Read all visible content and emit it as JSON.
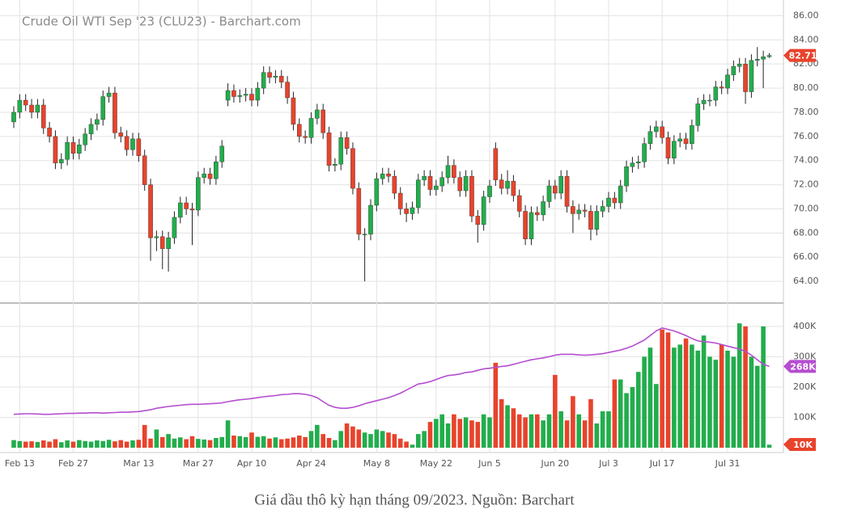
{
  "chart_data": {
    "type": "candlestick",
    "title": "Crude Oil WTI Sep '23 (CLU23) - Barchart.com",
    "caption": "Giá dầu thô kỳ hạn tháng 09/2023. Nguồn: Barchart",
    "up_color": "#22ad4c",
    "down_color": "#e8432c",
    "ma_color": "#b54ed0",
    "grid": true,
    "categories": [
      null,
      "Feb 13",
      null,
      null,
      null,
      null,
      null,
      null,
      null,
      null,
      "Feb 27",
      null,
      null,
      null,
      null,
      null,
      null,
      null,
      null,
      null,
      null,
      "Mar 13",
      null,
      null,
      null,
      null,
      null,
      null,
      null,
      null,
      null,
      "Mar 27",
      null,
      null,
      null,
      null,
      null,
      null,
      null,
      null,
      "Apr 10",
      null,
      null,
      null,
      null,
      null,
      null,
      null,
      null,
      null,
      "Apr 24",
      null,
      null,
      null,
      null,
      null,
      null,
      null,
      null,
      null,
      null,
      "May 8",
      null,
      null,
      null,
      null,
      null,
      null,
      null,
      null,
      null,
      "May 22",
      null,
      null,
      null,
      null,
      null,
      null,
      null,
      null,
      "Jun 5",
      null,
      null,
      null,
      null,
      null,
      null,
      null,
      null,
      null,
      null,
      "Jun 20",
      null,
      null,
      null,
      null,
      null,
      null,
      null,
      null,
      "Jul 3",
      null,
      null,
      null,
      null,
      null,
      null,
      null,
      null,
      "Jul 17",
      null,
      null,
      null,
      null,
      null,
      null,
      null,
      null,
      null,
      null,
      "Jul 31",
      null,
      null,
      null,
      null,
      null,
      null,
      null
    ],
    "open": [
      77.2,
      78.0,
      79.0,
      78.6,
      78.0,
      78.6,
      76.7,
      76.0,
      73.8,
      74.1,
      75.5,
      74.6,
      75.3,
      76.2,
      77.0,
      77.4,
      79.3,
      79.6,
      76.3,
      76.0,
      74.9,
      75.8,
      74.4,
      72.0,
      67.6,
      67.7,
      66.7,
      67.6,
      69.3,
      70.5,
      70.0,
      69.9,
      72.6,
      72.9,
      72.5,
      73.9,
      79.0,
      79.8,
      79.3,
      79.4,
      79.5,
      79.0,
      80.0,
      81.3,
      80.9,
      81.0,
      80.5,
      79.2,
      77.0,
      76.0,
      75.9,
      77.5,
      78.2,
      76.3,
      73.6,
      73.7,
      75.9,
      75.0,
      71.7,
      67.9,
      67.9,
      70.3,
      72.5,
      72.9,
      72.7,
      71.3,
      70.0,
      69.6,
      70.1,
      72.4,
      72.7,
      71.6,
      71.9,
      72.6,
      73.6,
      72.6,
      71.5,
      72.7,
      69.4,
      68.7,
      71.0,
      75.0,
      72.4,
      71.7,
      72.3,
      71.1,
      69.8,
      67.5,
      69.7,
      69.5,
      70.6,
      71.9,
      71.3,
      72.7,
      70.2,
      69.6,
      69.9,
      69.8,
      68.3,
      69.8,
      70.2,
      70.9,
      70.5,
      71.9,
      73.5,
      73.8,
      73.9,
      75.4,
      76.4,
      76.8,
      75.9,
      74.2,
      75.6,
      75.8,
      75.4,
      76.9,
      78.7,
      79.0,
      79.0,
      80.1,
      80.0,
      81.1,
      81.8,
      82.0,
      79.7,
      82.3,
      82.4,
      82.6
    ],
    "high": [
      78.5,
      79.5,
      79.5,
      79.1,
      79.1,
      79.1,
      77.2,
      76.5,
      74.6,
      76.0,
      76.0,
      75.8,
      76.7,
      77.5,
      77.9,
      79.8,
      80.1,
      80.1,
      76.8,
      76.5,
      76.3,
      76.3,
      74.9,
      72.5,
      68.2,
      68.2,
      68.1,
      69.8,
      71.0,
      71.0,
      70.5,
      73.1,
      73.4,
      73.4,
      74.4,
      75.7,
      80.4,
      80.3,
      79.9,
      80.0,
      80.0,
      80.5,
      81.8,
      81.8,
      81.5,
      81.5,
      81.0,
      79.7,
      77.5,
      76.5,
      78.0,
      78.7,
      78.7,
      76.8,
      74.2,
      76.4,
      76.4,
      75.5,
      72.2,
      68.4,
      70.8,
      73.0,
      73.4,
      73.4,
      73.2,
      71.8,
      70.5,
      70.6,
      72.9,
      73.2,
      73.2,
      72.4,
      73.1,
      74.4,
      74.1,
      73.1,
      73.2,
      73.2,
      69.9,
      71.5,
      72.4,
      75.5,
      72.9,
      73.2,
      72.8,
      71.6,
      70.3,
      70.2,
      70.2,
      71.1,
      72.4,
      72.4,
      73.2,
      73.2,
      70.7,
      70.4,
      70.4,
      70.3,
      70.3,
      70.7,
      71.4,
      71.4,
      72.4,
      74.0,
      74.3,
      74.4,
      75.9,
      76.9,
      77.3,
      77.3,
      76.4,
      76.1,
      76.3,
      76.3,
      77.4,
      79.2,
      79.5,
      79.5,
      80.6,
      80.6,
      81.6,
      82.3,
      82.5,
      82.5,
      82.8,
      83.4,
      83.1,
      82.9
    ],
    "low": [
      76.7,
      77.5,
      78.1,
      77.5,
      77.5,
      76.2,
      75.5,
      73.3,
      73.3,
      73.6,
      74.1,
      74.1,
      74.8,
      75.7,
      76.5,
      76.9,
      78.8,
      75.8,
      75.5,
      74.4,
      74.4,
      73.9,
      71.5,
      65.7,
      66.5,
      65.0,
      64.8,
      67.1,
      68.8,
      69.5,
      67.0,
      69.4,
      72.1,
      72.0,
      72.0,
      73.4,
      78.5,
      78.8,
      78.8,
      78.9,
      78.5,
      78.5,
      79.5,
      80.4,
      80.4,
      80.0,
      78.7,
      76.5,
      75.5,
      75.4,
      75.4,
      77.0,
      75.8,
      73.1,
      73.1,
      73.2,
      74.5,
      71.2,
      67.4,
      64.0,
      67.4,
      69.8,
      72.0,
      72.2,
      70.8,
      69.5,
      68.9,
      69.1,
      69.6,
      71.9,
      71.1,
      71.1,
      71.4,
      72.1,
      72.1,
      71.0,
      71.0,
      68.9,
      67.2,
      68.2,
      70.5,
      71.9,
      71.2,
      71.2,
      70.6,
      69.3,
      67.0,
      67.0,
      69.0,
      69.0,
      70.1,
      70.8,
      70.8,
      69.7,
      68.0,
      69.1,
      69.3,
      67.4,
      67.8,
      69.3,
      69.7,
      70.0,
      70.0,
      71.4,
      73.0,
      73.3,
      73.4,
      74.9,
      75.9,
      75.4,
      73.7,
      73.7,
      75.1,
      74.9,
      74.9,
      76.4,
      78.2,
      78.5,
      78.5,
      79.5,
      79.5,
      80.6,
      81.3,
      78.7,
      79.2,
      81.8,
      80.0,
      82.5
    ],
    "close": [
      78.0,
      79.0,
      78.6,
      78.0,
      78.6,
      76.7,
      76.0,
      73.8,
      74.1,
      75.5,
      74.6,
      75.3,
      76.2,
      77.0,
      77.4,
      79.3,
      79.6,
      76.3,
      76.0,
      74.9,
      75.8,
      74.4,
      72.0,
      67.6,
      67.7,
      66.7,
      67.6,
      69.3,
      70.5,
      70.0,
      69.9,
      72.6,
      72.9,
      72.5,
      73.9,
      75.2,
      79.8,
      79.3,
      79.4,
      79.5,
      79.0,
      80.0,
      81.3,
      80.9,
      81.0,
      80.5,
      79.2,
      77.0,
      76.0,
      75.9,
      77.5,
      78.2,
      76.3,
      73.6,
      73.7,
      75.9,
      75.0,
      71.7,
      67.9,
      67.9,
      70.3,
      72.5,
      72.9,
      72.7,
      71.3,
      70.0,
      69.6,
      70.1,
      72.4,
      72.7,
      71.6,
      71.9,
      72.6,
      73.6,
      72.6,
      71.5,
      72.7,
      69.4,
      68.7,
      71.0,
      71.9,
      72.4,
      71.7,
      72.3,
      71.1,
      69.8,
      67.5,
      69.7,
      69.5,
      70.6,
      71.9,
      71.3,
      72.7,
      70.2,
      69.6,
      69.9,
      69.8,
      68.3,
      69.8,
      70.2,
      70.9,
      70.5,
      71.9,
      73.5,
      73.8,
      73.9,
      75.4,
      76.4,
      76.8,
      75.9,
      74.2,
      75.6,
      75.8,
      75.4,
      76.9,
      78.7,
      79.0,
      79.0,
      80.1,
      80.0,
      81.1,
      81.8,
      82.0,
      79.7,
      82.3,
      82.4,
      82.6,
      82.71
    ],
    "volume": [
      25000,
      22000,
      20000,
      21000,
      19000,
      24000,
      20000,
      28000,
      18000,
      24000,
      20000,
      25000,
      22000,
      20000,
      24000,
      22000,
      26000,
      21000,
      25000,
      20000,
      24000,
      26000,
      75000,
      30000,
      60000,
      35000,
      45000,
      30000,
      34000,
      28000,
      38000,
      29000,
      27000,
      25000,
      32000,
      35000,
      90000,
      40000,
      38000,
      35000,
      50000,
      36000,
      38000,
      30000,
      34000,
      28000,
      30000,
      34000,
      40000,
      35000,
      55000,
      75000,
      45000,
      32000,
      25000,
      55000,
      80000,
      70000,
      60000,
      50000,
      45000,
      60000,
      55000,
      50000,
      45000,
      30000,
      20000,
      10000,
      45000,
      55000,
      85000,
      95000,
      110000,
      80000,
      110000,
      95000,
      100000,
      90000,
      85000,
      110000,
      100000,
      280000,
      160000,
      140000,
      130000,
      110000,
      100000,
      110000,
      110000,
      90000,
      110000,
      240000,
      120000,
      90000,
      170000,
      110000,
      90000,
      160000,
      80000,
      120000,
      120000,
      225000,
      225000,
      180000,
      200000,
      250000,
      300000,
      330000,
      210000,
      390000,
      380000,
      330000,
      340000,
      360000,
      340000,
      320000,
      370000,
      300000,
      290000,
      340000,
      320000,
      300000,
      410000,
      400000,
      300000,
      270000,
      400000,
      10000
    ],
    "volume_ma": [
      110000,
      111000,
      112000,
      112000,
      111000,
      110000,
      110000,
      111000,
      112000,
      113000,
      113000,
      114000,
      114000,
      115000,
      115000,
      114000,
      115000,
      116000,
      117000,
      117000,
      118000,
      119000,
      122000,
      125000,
      130000,
      133000,
      136000,
      138000,
      140000,
      142000,
      143000,
      143000,
      144000,
      145000,
      146000,
      148000,
      152000,
      155000,
      158000,
      160000,
      162000,
      165000,
      168000,
      170000,
      172000,
      175000,
      176000,
      178000,
      178000,
      176000,
      172000,
      165000,
      152000,
      140000,
      133000,
      130000,
      130000,
      133000,
      138000,
      145000,
      150000,
      155000,
      160000,
      165000,
      172000,
      180000,
      190000,
      200000,
      210000,
      213000,
      218000,
      225000,
      232000,
      238000,
      240000,
      243000,
      248000,
      250000,
      255000,
      260000,
      262000,
      265000,
      268000,
      270000,
      275000,
      280000,
      285000,
      290000,
      293000,
      296000,
      300000,
      305000,
      308000,
      308000,
      308000,
      306000,
      305000,
      306000,
      308000,
      310000,
      314000,
      318000,
      322000,
      328000,
      335000,
      345000,
      355000,
      370000,
      385000,
      395000,
      390000,
      385000,
      378000,
      370000,
      360000,
      352000,
      350000,
      348000,
      345000,
      340000,
      335000,
      330000,
      325000,
      318000,
      305000,
      290000,
      275000,
      268000
    ],
    "volume_last_label": "10K",
    "volume_ma_last_label": "268K",
    "ylim": [
      62.2,
      87.3
    ],
    "yticks": [
      {
        "value": 64,
        "label": "64.00"
      },
      {
        "value": 66,
        "label": "66.00"
      },
      {
        "value": 68,
        "label": "68.00"
      },
      {
        "value": 70,
        "label": "70.00"
      },
      {
        "value": 72,
        "label": "72.00"
      },
      {
        "value": 74,
        "label": "74.00"
      },
      {
        "value": 76,
        "label": "76.00"
      },
      {
        "value": 78,
        "label": "78.00"
      },
      {
        "value": 80,
        "label": "80.00"
      },
      {
        "value": 82,
        "label": "82.00"
      },
      {
        "value": 84,
        "label": "84.00"
      },
      {
        "value": 86,
        "label": "86.00"
      }
    ],
    "y2lim": [
      -16000,
      477000
    ],
    "y2ticks": [
      {
        "value": 100000,
        "label": "100K"
      },
      {
        "value": 200000,
        "label": "200K"
      },
      {
        "value": 300000,
        "label": "300K"
      },
      {
        "value": 400000,
        "label": "400K"
      }
    ]
  }
}
